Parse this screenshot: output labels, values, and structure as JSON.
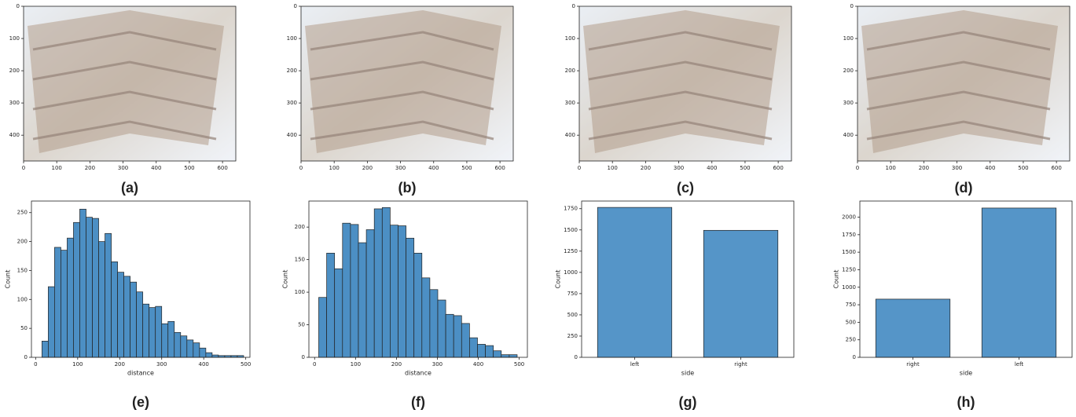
{
  "chart_data": [
    {
      "type": "image",
      "label": "(a)",
      "xlim": [
        0,
        640
      ],
      "ylim": [
        480,
        0
      ],
      "xticks": [
        0,
        100,
        200,
        300,
        400,
        500,
        600
      ],
      "yticks": [
        0,
        100,
        200,
        300,
        400
      ]
    },
    {
      "type": "image",
      "label": "(b)",
      "xlim": [
        0,
        640
      ],
      "ylim": [
        480,
        0
      ],
      "xticks": [
        0,
        100,
        200,
        300,
        400,
        500,
        600
      ],
      "yticks": [
        0,
        100,
        200,
        300,
        400
      ]
    },
    {
      "type": "image",
      "label": "(c)",
      "xlim": [
        0,
        640
      ],
      "ylim": [
        480,
        0
      ],
      "xticks": [
        0,
        100,
        200,
        300,
        400,
        500,
        600
      ],
      "yticks": [
        0,
        100,
        200,
        300,
        400
      ]
    },
    {
      "type": "image",
      "label": "(d)",
      "xlim": [
        0,
        640
      ],
      "ylim": [
        480,
        0
      ],
      "xticks": [
        0,
        100,
        200,
        300,
        400,
        500,
        600
      ],
      "yticks": [
        0,
        100,
        200,
        300,
        400
      ]
    },
    {
      "type": "histogram",
      "label": "(e)",
      "xlabel": "distance",
      "ylabel": "Count",
      "color": "#4c8fc4",
      "bins": [
        15,
        30,
        45,
        60,
        75,
        90,
        105,
        120,
        135,
        150,
        165,
        180,
        195,
        210,
        225,
        240,
        255,
        270,
        285,
        300,
        315,
        330,
        345,
        360,
        375,
        390,
        405,
        420,
        435,
        450,
        465,
        480,
        495
      ],
      "values": [
        28,
        122,
        190,
        185,
        206,
        233,
        256,
        242,
        240,
        200,
        214,
        165,
        147,
        140,
        130,
        113,
        92,
        86,
        88,
        58,
        62,
        43,
        37,
        30,
        25,
        16,
        8,
        4,
        3,
        3,
        3,
        3
      ],
      "xlim": [
        -10,
        510
      ],
      "ylim": [
        0,
        270
      ],
      "xticks": [
        0,
        100,
        200,
        300,
        400,
        500
      ],
      "yticks": [
        0,
        50,
        100,
        150,
        200,
        250
      ]
    },
    {
      "type": "histogram",
      "label": "(f)",
      "xlabel": "distance",
      "ylabel": "Count",
      "color": "#4c8fc4",
      "bins": [
        10,
        29.4,
        48.8,
        68.2,
        87.6,
        107,
        126.4,
        145.8,
        165.2,
        184.6,
        204,
        223.4,
        242.8,
        262.2,
        281.6,
        301,
        320.4,
        339.8,
        359.2,
        378.6,
        398,
        417.4,
        436.8,
        456.2,
        475.6,
        495
      ],
      "values": [
        92,
        160,
        136,
        206,
        204,
        176,
        196,
        228,
        230,
        203,
        202,
        183,
        160,
        122,
        104,
        88,
        66,
        64,
        52,
        30,
        20,
        18,
        10,
        4,
        4
      ],
      "xlim": [
        -14,
        520
      ],
      "ylim": [
        0,
        240
      ],
      "xticks": [
        0,
        100,
        200,
        300,
        400,
        500
      ],
      "yticks": [
        0,
        50,
        100,
        150,
        200
      ]
    },
    {
      "type": "bar",
      "label": "(g)",
      "xlabel": "side",
      "ylabel": "Count",
      "color": "#5595c8",
      "categories": [
        "left",
        "right"
      ],
      "values": [
        1765,
        1495
      ],
      "ylim": [
        0,
        1840
      ],
      "yticks": [
        0,
        250,
        500,
        750,
        1000,
        1250,
        1500,
        1750
      ]
    },
    {
      "type": "bar",
      "label": "(h)",
      "xlabel": "side",
      "ylabel": "Count",
      "color": "#5595c8",
      "categories": [
        "right",
        "left"
      ],
      "values": [
        830,
        2130
      ],
      "ylim": [
        0,
        2230
      ],
      "yticks": [
        0,
        250,
        500,
        750,
        1000,
        1250,
        1500,
        1750,
        2000
      ]
    }
  ]
}
